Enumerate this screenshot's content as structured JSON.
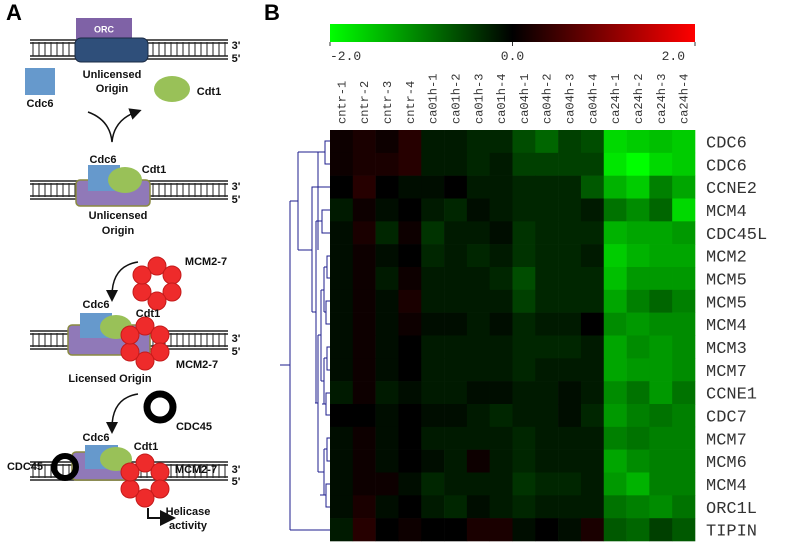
{
  "panel_a": {
    "label": "A",
    "step1": {
      "orc": "ORC",
      "origin": [
        "Unlicensed",
        "Origin"
      ],
      "cdc6": "Cdc6",
      "cdt1": "Cdt1",
      "ends": [
        "3'",
        "5'"
      ]
    },
    "step2": {
      "cdc6": "Cdc6",
      "cdt1": "Cdt1",
      "origin": [
        "Unlicensed",
        "Origin"
      ],
      "ends": [
        "3'",
        "5'"
      ],
      "mcm": "MCM2-7"
    },
    "step3": {
      "cdc6": "Cdc6",
      "cdt1": "Cdt1",
      "mcm": "MCM2-7",
      "origin": "Licensed Origin",
      "ends": [
        "3'",
        "5'"
      ],
      "cdc45": "CDC45"
    },
    "step4": {
      "cdc6": "Cdc6",
      "cdt1": "Cdt1",
      "cdc45": "CDC45",
      "mcm": "MCM2-7",
      "ends": [
        "3'",
        "5'"
      ],
      "activity": [
        "Helicase",
        "activity"
      ]
    }
  },
  "chart_data": {
    "type": "heatmap",
    "label": "B",
    "columns": [
      "cntr-1",
      "cntr-2",
      "cntr-3",
      "cntr-4",
      "ca01h-1",
      "ca01h-2",
      "ca01h-3",
      "ca01h-4",
      "ca04h-1",
      "ca04h-2",
      "ca04h-3",
      "ca04h-4",
      "ca24h-1",
      "ca24h-2",
      "ca24h-3",
      "ca24h-4"
    ],
    "rows": [
      "CDC6",
      "CDC6",
      "CCNE2",
      "MCM4",
      "CDC45L",
      "MCM2",
      "MCM5",
      "MCM5",
      "MCM4",
      "MCM3",
      "MCM7",
      "CCNE1",
      "CDC7",
      "MCM7",
      "MCM6",
      "MCM4",
      "ORC1L",
      "TIPIN"
    ],
    "values": [
      [
        0.1,
        0.2,
        0.1,
        0.3,
        -0.2,
        -0.2,
        -0.3,
        -0.3,
        -0.6,
        -0.8,
        -0.5,
        -0.6,
        -1.7,
        -1.6,
        -1.5,
        -1.6
      ],
      [
        0.1,
        0.2,
        0.2,
        0.3,
        -0.2,
        -0.2,
        -0.3,
        -0.2,
        -0.5,
        -0.5,
        -0.5,
        -0.5,
        -1.8,
        -2.0,
        -1.7,
        -1.6
      ],
      [
        0.0,
        0.3,
        0.0,
        -0.1,
        -0.1,
        0.0,
        -0.2,
        -0.2,
        -0.3,
        -0.3,
        -0.3,
        -0.7,
        -1.4,
        -1.6,
        -1.0,
        -1.3
      ],
      [
        -0.2,
        0.1,
        -0.1,
        0.0,
        -0.2,
        -0.3,
        -0.1,
        -0.2,
        -0.3,
        -0.3,
        -0.3,
        -0.2,
        -0.9,
        -1.1,
        -0.8,
        -1.7
      ],
      [
        -0.1,
        0.2,
        -0.3,
        0.1,
        -0.4,
        -0.2,
        -0.2,
        -0.1,
        -0.4,
        -0.3,
        -0.3,
        -0.3,
        -1.4,
        -1.3,
        -1.3,
        -1.2
      ],
      [
        -0.1,
        0.1,
        -0.1,
        0.0,
        -0.3,
        -0.2,
        -0.3,
        -0.2,
        -0.4,
        -0.3,
        -0.3,
        -0.2,
        -1.6,
        -1.4,
        -1.3,
        -1.3
      ],
      [
        -0.1,
        0.1,
        -0.2,
        0.1,
        -0.2,
        -0.2,
        -0.2,
        -0.3,
        -0.6,
        -0.3,
        -0.3,
        -0.3,
        -1.5,
        -1.2,
        -1.2,
        -1.2
      ],
      [
        -0.1,
        0.1,
        -0.1,
        0.2,
        -0.2,
        -0.2,
        -0.2,
        -0.2,
        -0.5,
        -0.3,
        -0.3,
        -0.3,
        -1.3,
        -1.0,
        -0.8,
        -1.0
      ],
      [
        -0.1,
        0.1,
        -0.1,
        0.1,
        -0.1,
        -0.1,
        -0.2,
        -0.1,
        -0.3,
        -0.2,
        -0.2,
        0.0,
        -1.1,
        -1.2,
        -1.1,
        -1.1
      ],
      [
        -0.1,
        0.1,
        -0.1,
        0.0,
        -0.2,
        -0.2,
        -0.2,
        -0.2,
        -0.3,
        -0.3,
        -0.3,
        -0.2,
        -1.3,
        -1.1,
        -1.2,
        -1.1
      ],
      [
        -0.1,
        0.1,
        -0.1,
        0.0,
        -0.2,
        -0.2,
        -0.2,
        -0.2,
        -0.3,
        -0.2,
        -0.2,
        -0.2,
        -1.3,
        -1.2,
        -1.2,
        -1.1
      ],
      [
        -0.2,
        0.1,
        -0.2,
        -0.1,
        -0.2,
        -0.2,
        -0.1,
        -0.1,
        -0.2,
        -0.2,
        -0.1,
        -0.2,
        -1.1,
        -0.9,
        -1.2,
        -0.9
      ],
      [
        0.0,
        0.0,
        -0.1,
        0.0,
        -0.1,
        -0.1,
        -0.2,
        -0.3,
        -0.2,
        -0.2,
        -0.1,
        -0.3,
        -1.2,
        -1.0,
        -0.9,
        -1.0
      ],
      [
        -0.1,
        0.1,
        -0.1,
        0.0,
        -0.2,
        -0.2,
        -0.2,
        -0.2,
        -0.3,
        -0.2,
        -0.2,
        -0.2,
        -1.0,
        -0.9,
        -1.0,
        -1.0
      ],
      [
        -0.1,
        0.1,
        -0.1,
        0.0,
        -0.1,
        -0.2,
        0.1,
        -0.2,
        -0.3,
        -0.2,
        -0.2,
        -0.2,
        -1.3,
        -1.1,
        -1.0,
        -1.0
      ],
      [
        -0.1,
        0.1,
        0.1,
        -0.1,
        -0.3,
        -0.2,
        -0.2,
        -0.2,
        -0.4,
        -0.3,
        -0.3,
        -0.2,
        -1.2,
        -1.4,
        -1.0,
        -1.0
      ],
      [
        -0.1,
        0.2,
        -0.1,
        0.0,
        -0.2,
        -0.3,
        -0.1,
        -0.2,
        -0.3,
        -0.2,
        -0.2,
        -0.2,
        -0.9,
        -1.0,
        -1.1,
        -0.9
      ],
      [
        -0.2,
        0.3,
        0.0,
        0.1,
        0.0,
        0.0,
        0.2,
        0.2,
        -0.1,
        0.0,
        -0.1,
        0.2,
        -0.7,
        -0.8,
        -0.5,
        -0.7
      ]
    ],
    "colors": {
      "low": "#00ff00",
      "mid": "#000000",
      "high": "#ff0000"
    },
    "clim": [
      -2,
      2
    ],
    "cticks": [
      {
        "value": -2,
        "label": "-2.0"
      },
      {
        "value": 0,
        "label": "0.0"
      },
      {
        "value": 2,
        "label": "2.0"
      }
    ]
  }
}
